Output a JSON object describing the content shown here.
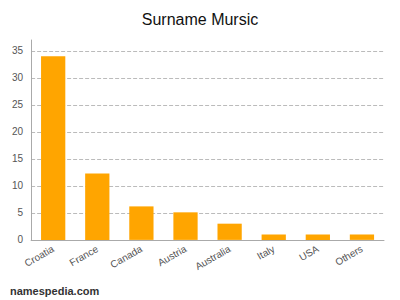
{
  "chart_data": {
    "type": "bar",
    "title": "Surname Mursic",
    "categories": [
      "Croatia",
      "France",
      "Canada",
      "Austria",
      "Australia",
      "Italy",
      "USA",
      "Others"
    ],
    "values": [
      34,
      12.3,
      6.2,
      5.1,
      3.0,
      1.0,
      1.0,
      1.0
    ],
    "color": "#FFA500",
    "ylim": [
      0,
      37
    ],
    "yticks": [
      0,
      5,
      10,
      15,
      20,
      25,
      30,
      35
    ],
    "grid": true,
    "annotations": [
      "namespedia.com"
    ]
  }
}
